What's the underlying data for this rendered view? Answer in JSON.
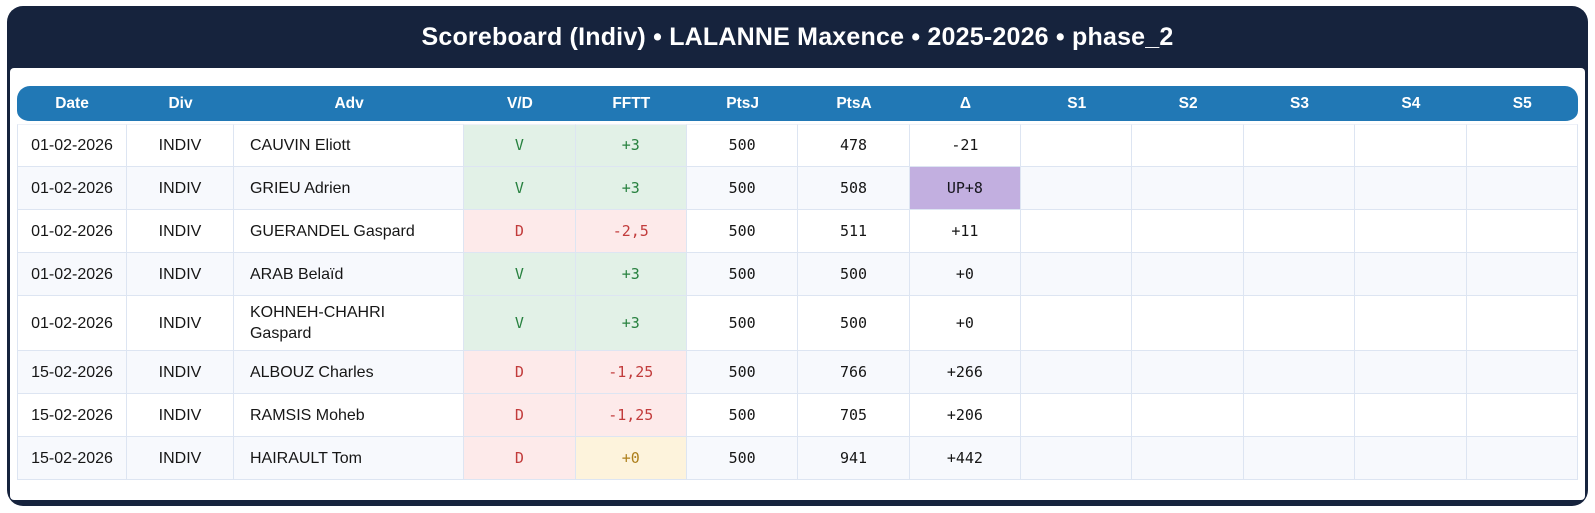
{
  "title": "Scoreboard (Indiv) • LALANNE Maxence • 2025-2026 • phase_2",
  "table": {
    "columns": [
      "Date",
      "Div",
      "Adv",
      "V/D",
      "FFTT",
      "PtsJ",
      "PtsA",
      "Δ",
      "S1",
      "S2",
      "S3",
      "S4",
      "S5"
    ],
    "rows": [
      {
        "date": "01-02-2026",
        "div": "INDIV",
        "adv": "CAUVIN Eliott",
        "vd": "V",
        "result": "win",
        "fftt": "+3",
        "fftt_style": "win",
        "ptsj": "500",
        "ptsa": "478",
        "delta": "-21",
        "delta_style": "normal",
        "sets": [
          "",
          "",
          "",
          "",
          ""
        ]
      },
      {
        "date": "01-02-2026",
        "div": "INDIV",
        "adv": "GRIEU Adrien",
        "vd": "V",
        "result": "win",
        "fftt": "+3",
        "fftt_style": "win",
        "ptsj": "500",
        "ptsa": "508",
        "delta": "UP+8",
        "delta_style": "up",
        "sets": [
          "",
          "",
          "",
          "",
          ""
        ]
      },
      {
        "date": "01-02-2026",
        "div": "INDIV",
        "adv": "GUERANDEL Gaspard",
        "vd": "D",
        "result": "loss",
        "fftt": "-2,5",
        "fftt_style": "loss",
        "ptsj": "500",
        "ptsa": "511",
        "delta": "+11",
        "delta_style": "normal",
        "sets": [
          "",
          "",
          "",
          "",
          ""
        ]
      },
      {
        "date": "01-02-2026",
        "div": "INDIV",
        "adv": "ARAB Belaïd",
        "vd": "V",
        "result": "win",
        "fftt": "+3",
        "fftt_style": "win",
        "ptsj": "500",
        "ptsa": "500",
        "delta": "+0",
        "delta_style": "normal",
        "sets": [
          "",
          "",
          "",
          "",
          ""
        ]
      },
      {
        "date": "01-02-2026",
        "div": "INDIV",
        "adv": "KOHNEH-CHAHRI Gaspard",
        "vd": "V",
        "result": "win",
        "fftt": "+3",
        "fftt_style": "win",
        "ptsj": "500",
        "ptsa": "500",
        "delta": "+0",
        "delta_style": "normal",
        "sets": [
          "",
          "",
          "",
          "",
          ""
        ]
      },
      {
        "date": "15-02-2026",
        "div": "INDIV",
        "adv": "ALBOUZ Charles",
        "vd": "D",
        "result": "loss",
        "fftt": "-1,25",
        "fftt_style": "loss",
        "ptsj": "500",
        "ptsa": "766",
        "delta": "+266",
        "delta_style": "normal",
        "sets": [
          "",
          "",
          "",
          "",
          ""
        ]
      },
      {
        "date": "15-02-2026",
        "div": "INDIV",
        "adv": "RAMSIS Moheb",
        "vd": "D",
        "result": "loss",
        "fftt": "-1,25",
        "fftt_style": "loss",
        "ptsj": "500",
        "ptsa": "705",
        "delta": "+206",
        "delta_style": "normal",
        "sets": [
          "",
          "",
          "",
          "",
          ""
        ]
      },
      {
        "date": "15-02-2026",
        "div": "INDIV",
        "adv": "HAIRAULT Tom",
        "vd": "D",
        "result": "loss",
        "fftt": "+0",
        "fftt_style": "zero",
        "ptsj": "500",
        "ptsa": "941",
        "delta": "+442",
        "delta_style": "normal",
        "sets": [
          "",
          "",
          "",
          "",
          ""
        ]
      }
    ]
  },
  "colors": {
    "card_bg": "#16233d",
    "header_bg": "#2178b5",
    "header_text": "#ffffff",
    "grid_line": "#dde5f2",
    "alt_row_bg": "#f7f9fd",
    "win_bg": "#e2f1e7",
    "win_text": "#27813f",
    "loss_bg": "#fdeaea",
    "loss_text": "#c23b3b",
    "zero_bg": "#fdf3dc",
    "zero_text": "#ad7f1b",
    "up_bg": "#c2afe0"
  }
}
